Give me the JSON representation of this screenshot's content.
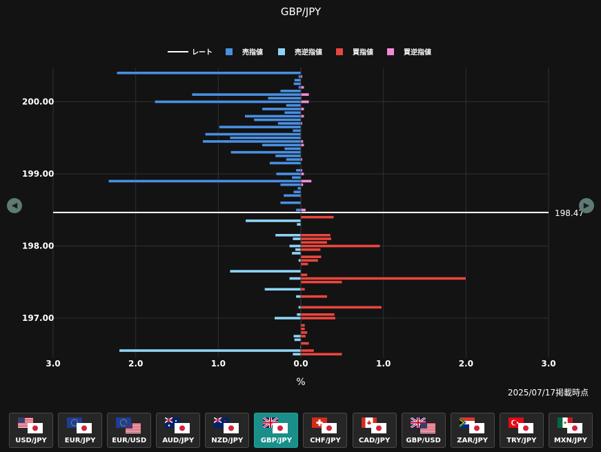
{
  "chart_data": {
    "type": "bar",
    "title": "GBP/JPY",
    "xlabel": "%",
    "orientation": "horizontal",
    "x_ticks": [
      "3.0",
      "2.0",
      "1.0",
      "0.0",
      "1.0",
      "2.0",
      "3.0"
    ],
    "xlim": [
      -3,
      3
    ],
    "ylim": [
      196.56,
      200.46
    ],
    "y_ticks": [
      "200.00",
      "199.00",
      "198.00",
      "197.00"
    ],
    "y_tick_values": [
      200.0,
      199.0,
      198.0,
      197.0
    ],
    "grid": true,
    "legend_position": "top-center",
    "rate": 198.47,
    "rate_label": "198.47",
    "price_step": 0.05,
    "legend": [
      {
        "key": "rate",
        "label": "レート",
        "color": "#ffffff"
      },
      {
        "key": "sell_limit",
        "label": "売指値",
        "color": "#4a8fe0"
      },
      {
        "key": "sell_stop",
        "label": "売逆指値",
        "color": "#8fd3f4"
      },
      {
        "key": "buy_limit",
        "label": "買指値",
        "color": "#e8473f"
      },
      {
        "key": "buy_stop",
        "label": "買逆指値",
        "color": "#f28ad8"
      }
    ],
    "series": [
      {
        "name": "売指値",
        "side": "left",
        "color": "#4a8fe0",
        "points": [
          [
            200.4,
            2.23
          ],
          [
            200.35,
            0.03
          ],
          [
            200.3,
            0.08
          ],
          [
            200.25,
            0.09
          ],
          [
            200.2,
            0.03
          ],
          [
            200.15,
            0.25
          ],
          [
            200.1,
            1.32
          ],
          [
            200.05,
            0.4
          ],
          [
            200.0,
            1.77
          ],
          [
            199.95,
            0.18
          ],
          [
            199.9,
            0.47
          ],
          [
            199.85,
            0.2
          ],
          [
            199.8,
            0.68
          ],
          [
            199.75,
            0.57
          ],
          [
            199.7,
            0.28
          ],
          [
            199.65,
            0.99
          ],
          [
            199.6,
            0.1
          ],
          [
            199.55,
            1.16
          ],
          [
            199.5,
            0.86
          ],
          [
            199.45,
            1.19
          ],
          [
            199.4,
            0.47
          ],
          [
            199.35,
            0.2
          ],
          [
            199.3,
            0.85
          ],
          [
            199.25,
            0.31
          ],
          [
            199.2,
            0.18
          ],
          [
            199.15,
            0.38
          ],
          [
            199.05,
            0.06
          ],
          [
            199.0,
            0.3
          ],
          [
            198.95,
            0.11
          ],
          [
            198.9,
            2.33
          ],
          [
            198.85,
            0.25
          ],
          [
            198.8,
            0.04
          ],
          [
            198.75,
            0.09
          ],
          [
            198.7,
            0.21
          ],
          [
            198.6,
            0.25
          ],
          [
            198.5,
            0.06
          ]
        ]
      },
      {
        "name": "売逆指値",
        "side": "left",
        "color": "#8fd3f4",
        "points": [
          [
            198.35,
            0.67
          ],
          [
            198.3,
            0.05
          ],
          [
            198.15,
            0.31
          ],
          [
            198.1,
            0.1
          ],
          [
            198.0,
            0.14
          ],
          [
            197.95,
            0.07
          ],
          [
            197.9,
            0.11
          ],
          [
            197.8,
            0.03
          ],
          [
            197.65,
            0.86
          ],
          [
            197.55,
            0.14
          ],
          [
            197.4,
            0.44
          ],
          [
            197.3,
            0.06
          ],
          [
            197.15,
            0.03
          ],
          [
            197.05,
            0.05
          ],
          [
            197.0,
            0.32
          ],
          [
            196.75,
            0.09
          ],
          [
            196.7,
            0.08
          ],
          [
            196.6,
            0.01
          ],
          [
            196.55,
            2.2
          ],
          [
            196.5,
            0.1
          ]
        ]
      },
      {
        "name": "買指値",
        "side": "right",
        "color": "#e8473f",
        "points": [
          [
            198.4,
            0.4
          ],
          [
            198.15,
            0.36
          ],
          [
            198.1,
            0.37
          ],
          [
            198.05,
            0.32
          ],
          [
            198.0,
            0.96
          ],
          [
            197.95,
            0.24
          ],
          [
            197.85,
            0.25
          ],
          [
            197.8,
            0.21
          ],
          [
            197.75,
            0.09
          ],
          [
            197.6,
            0.08
          ],
          [
            197.55,
            2.0
          ],
          [
            197.5,
            0.5
          ],
          [
            197.4,
            0.05
          ],
          [
            197.3,
            0.32
          ],
          [
            197.15,
            0.98
          ],
          [
            197.05,
            0.41
          ],
          [
            197.0,
            0.42
          ],
          [
            196.9,
            0.05
          ],
          [
            196.85,
            0.05
          ],
          [
            196.8,
            0.08
          ],
          [
            196.75,
            0.06
          ],
          [
            196.65,
            0.1
          ],
          [
            196.55,
            0.16
          ],
          [
            196.5,
            0.5
          ]
        ]
      },
      {
        "name": "買逆指値",
        "side": "right",
        "color": "#f28ad8",
        "points": [
          [
            200.35,
            0.02
          ],
          [
            200.2,
            0.04
          ],
          [
            200.1,
            0.1
          ],
          [
            200.05,
            0.01
          ],
          [
            200.0,
            0.1
          ],
          [
            199.9,
            0.04
          ],
          [
            199.8,
            0.04
          ],
          [
            199.7,
            0.02
          ],
          [
            199.45,
            0.03
          ],
          [
            199.4,
            0.04
          ],
          [
            199.2,
            0.02
          ],
          [
            199.05,
            0.02
          ],
          [
            199.0,
            0.04
          ],
          [
            198.9,
            0.13
          ],
          [
            198.85,
            0.03
          ],
          [
            198.5,
            0.06
          ]
        ]
      }
    ]
  },
  "nav": {
    "prev_icon": "◀",
    "next_icon": "▶"
  },
  "timestamp": "2025/07/17掲載時点",
  "pairs": [
    {
      "label": "USD/JPY",
      "a": "us",
      "b": "jp",
      "active": false
    },
    {
      "label": "EUR/JPY",
      "a": "eu",
      "b": "jp",
      "active": false
    },
    {
      "label": "EUR/USD",
      "a": "eu",
      "b": "us",
      "active": false
    },
    {
      "label": "AUD/JPY",
      "a": "au",
      "b": "jp",
      "active": false
    },
    {
      "label": "NZD/JPY",
      "a": "nz",
      "b": "jp",
      "active": false
    },
    {
      "label": "GBP/JPY",
      "a": "gb",
      "b": "jp",
      "active": true
    },
    {
      "label": "CHF/JPY",
      "a": "ch",
      "b": "jp",
      "active": false
    },
    {
      "label": "CAD/JPY",
      "a": "ca",
      "b": "jp",
      "active": false
    },
    {
      "label": "GBP/USD",
      "a": "gb",
      "b": "us",
      "active": false
    },
    {
      "label": "ZAR/JPY",
      "a": "za",
      "b": "jp",
      "active": false
    },
    {
      "label": "TRY/JPY",
      "a": "tr",
      "b": "jp",
      "active": false
    },
    {
      "label": "MXN/JPY",
      "a": "mx",
      "b": "jp",
      "active": false
    }
  ]
}
